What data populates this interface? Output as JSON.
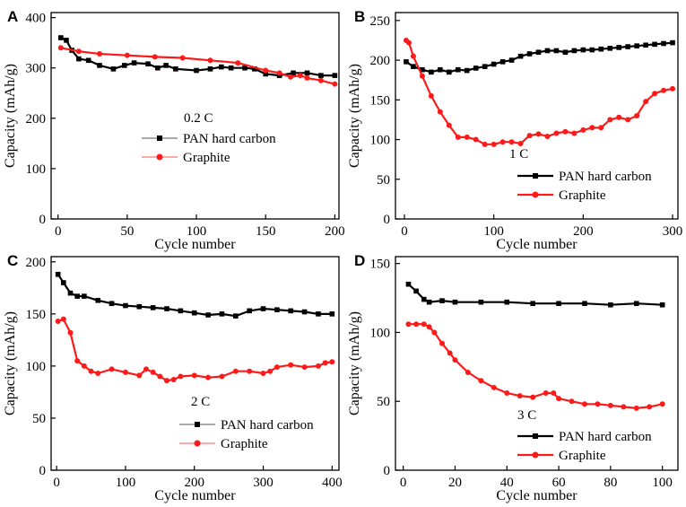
{
  "colors": {
    "pan": "#000000",
    "graphite": "#ff1a1a",
    "pan_faded": "#777777",
    "graphite_faded": "#ff7777"
  },
  "chart_data": [
    {
      "type": "line",
      "panel": "A",
      "rate_label": "0.2 C",
      "xlabel": "Cycle number",
      "ylabel": "Capacity (mAh/g)",
      "xlim": [
        -5,
        203
      ],
      "ylim": [
        0,
        410
      ],
      "xticks": [
        0,
        50,
        100,
        150,
        200
      ],
      "yticks": [
        0,
        100,
        200,
        300,
        400
      ],
      "legend": {
        "position": "center",
        "style": "faded"
      },
      "series": [
        {
          "name": "PAN hard carbon",
          "color_key": "pan",
          "points": [
            [
              2,
              360
            ],
            [
              6,
              355
            ],
            [
              10,
              335
            ],
            [
              15,
              318
            ],
            [
              22,
              315
            ],
            [
              30,
              305
            ],
            [
              40,
              298
            ],
            [
              48,
              305
            ],
            [
              55,
              310
            ],
            [
              65,
              308
            ],
            [
              72,
              300
            ],
            [
              78,
              305
            ],
            [
              85,
              298
            ],
            [
              100,
              295
            ],
            [
              110,
              298
            ],
            [
              118,
              302
            ],
            [
              125,
              300
            ],
            [
              135,
              300
            ],
            [
              142,
              298
            ],
            [
              150,
              288
            ],
            [
              160,
              285
            ],
            [
              170,
              290
            ],
            [
              180,
              290
            ],
            [
              190,
              285
            ],
            [
              200,
              285
            ]
          ]
        },
        {
          "name": "Graphite",
          "color_key": "graphite",
          "points": [
            [
              2,
              340
            ],
            [
              15,
              333
            ],
            [
              30,
              328
            ],
            [
              50,
              325
            ],
            [
              70,
              322
            ],
            [
              90,
              320
            ],
            [
              110,
              315
            ],
            [
              130,
              310
            ],
            [
              150,
              295
            ],
            [
              160,
              290
            ],
            [
              168,
              282
            ],
            [
              175,
              285
            ],
            [
              180,
              280
            ],
            [
              190,
              275
            ],
            [
              200,
              268
            ]
          ]
        }
      ]
    },
    {
      "type": "line",
      "panel": "B",
      "rate_label": "1 C",
      "xlabel": "Cycle number",
      "ylabel": "Capacity (mAh/g)",
      "xlim": [
        -10,
        306
      ],
      "ylim": [
        0,
        260
      ],
      "xticks": [
        0,
        100,
        200,
        300
      ],
      "yticks": [
        0,
        50,
        100,
        150,
        200,
        250
      ],
      "legend": {
        "position": "bottom-right",
        "style": "solid"
      },
      "series": [
        {
          "name": "PAN hard carbon",
          "color_key": "pan",
          "points": [
            [
              2,
              198
            ],
            [
              10,
              192
            ],
            [
              20,
              188
            ],
            [
              30,
              185
            ],
            [
              40,
              188
            ],
            [
              50,
              185
            ],
            [
              60,
              188
            ],
            [
              70,
              187
            ],
            [
              80,
              190
            ],
            [
              90,
              192
            ],
            [
              100,
              195
            ],
            [
              110,
              198
            ],
            [
              120,
              200
            ],
            [
              130,
              205
            ],
            [
              140,
              208
            ],
            [
              150,
              210
            ],
            [
              160,
              212
            ],
            [
              170,
              212
            ],
            [
              180,
              210
            ],
            [
              190,
              212
            ],
            [
              200,
              213
            ],
            [
              210,
              213
            ],
            [
              220,
              214
            ],
            [
              230,
              215
            ],
            [
              240,
              216
            ],
            [
              250,
              217
            ],
            [
              260,
              218
            ],
            [
              270,
              219
            ],
            [
              280,
              220
            ],
            [
              290,
              221
            ],
            [
              300,
              222
            ]
          ]
        },
        {
          "name": "Graphite",
          "color_key": "graphite",
          "points": [
            [
              2,
              225
            ],
            [
              5,
              222
            ],
            [
              10,
              205
            ],
            [
              20,
              180
            ],
            [
              30,
              155
            ],
            [
              40,
              135
            ],
            [
              50,
              118
            ],
            [
              60,
              103
            ],
            [
              70,
              103
            ],
            [
              80,
              100
            ],
            [
              90,
              94
            ],
            [
              100,
              94
            ],
            [
              110,
              97
            ],
            [
              120,
              97
            ],
            [
              130,
              95
            ],
            [
              140,
              105
            ],
            [
              150,
              107
            ],
            [
              160,
              104
            ],
            [
              170,
              108
            ],
            [
              180,
              110
            ],
            [
              190,
              108
            ],
            [
              200,
              112
            ],
            [
              210,
              115
            ],
            [
              220,
              115
            ],
            [
              230,
              125
            ],
            [
              240,
              128
            ],
            [
              250,
              125
            ],
            [
              260,
              130
            ],
            [
              270,
              148
            ],
            [
              280,
              158
            ],
            [
              290,
              162
            ],
            [
              300,
              164
            ]
          ]
        }
      ]
    },
    {
      "type": "line",
      "panel": "C",
      "rate_label": "2 C",
      "xlabel": "Cycle number",
      "ylabel": "Capacity (mAh/g)",
      "xlim": [
        -8,
        410
      ],
      "ylim": [
        0,
        205
      ],
      "xticks": [
        0,
        100,
        200,
        300,
        400
      ],
      "yticks": [
        0,
        50,
        100,
        150,
        200
      ],
      "legend": {
        "position": "bottom-right",
        "style": "faded"
      },
      "series": [
        {
          "name": "PAN hard carbon",
          "color_key": "pan",
          "points": [
            [
              2,
              188
            ],
            [
              10,
              180
            ],
            [
              20,
              170
            ],
            [
              30,
              167
            ],
            [
              40,
              167
            ],
            [
              60,
              163
            ],
            [
              80,
              160
            ],
            [
              100,
              158
            ],
            [
              120,
              157
            ],
            [
              140,
              156
            ],
            [
              160,
              155
            ],
            [
              180,
              153
            ],
            [
              200,
              151
            ],
            [
              220,
              149
            ],
            [
              240,
              150
            ],
            [
              260,
              148
            ],
            [
              280,
              153
            ],
            [
              300,
              155
            ],
            [
              320,
              154
            ],
            [
              340,
              153
            ],
            [
              360,
              152
            ],
            [
              380,
              150
            ],
            [
              400,
              150
            ]
          ]
        },
        {
          "name": "Graphite",
          "color_key": "graphite",
          "points": [
            [
              2,
              143
            ],
            [
              10,
              145
            ],
            [
              20,
              132
            ],
            [
              30,
              105
            ],
            [
              40,
              100
            ],
            [
              50,
              95
            ],
            [
              60,
              93
            ],
            [
              80,
              97
            ],
            [
              100,
              94
            ],
            [
              120,
              91
            ],
            [
              130,
              97
            ],
            [
              140,
              94
            ],
            [
              150,
              90
            ],
            [
              160,
              86
            ],
            [
              170,
              87
            ],
            [
              180,
              90
            ],
            [
              200,
              91
            ],
            [
              220,
              89
            ],
            [
              240,
              90
            ],
            [
              260,
              95
            ],
            [
              280,
              95
            ],
            [
              300,
              93
            ],
            [
              310,
              95
            ],
            [
              320,
              99
            ],
            [
              340,
              101
            ],
            [
              360,
              99
            ],
            [
              380,
              100
            ],
            [
              390,
              103
            ],
            [
              400,
              104
            ]
          ]
        }
      ]
    },
    {
      "type": "line",
      "panel": "D",
      "rate_label": "3 C",
      "xlabel": "Cycle number",
      "ylabel": "Capacity (mAh/g)",
      "xlim": [
        -3,
        106
      ],
      "ylim": [
        0,
        155
      ],
      "xticks": [
        0,
        20,
        40,
        60,
        80,
        100
      ],
      "yticks": [
        0,
        50,
        100,
        150
      ],
      "legend": {
        "position": "bottom-right",
        "style": "solid"
      },
      "series": [
        {
          "name": "PAN hard carbon",
          "color_key": "pan",
          "points": [
            [
              2,
              135
            ],
            [
              5,
              130
            ],
            [
              8,
              124
            ],
            [
              10,
              122
            ],
            [
              15,
              123
            ],
            [
              20,
              122
            ],
            [
              30,
              122
            ],
            [
              40,
              122
            ],
            [
              50,
              121
            ],
            [
              60,
              121
            ],
            [
              70,
              121
            ],
            [
              80,
              120
            ],
            [
              90,
              121
            ],
            [
              100,
              120
            ]
          ]
        },
        {
          "name": "Graphite",
          "color_key": "graphite",
          "points": [
            [
              2,
              106
            ],
            [
              5,
              106
            ],
            [
              8,
              106
            ],
            [
              10,
              104
            ],
            [
              12,
              100
            ],
            [
              15,
              92
            ],
            [
              18,
              85
            ],
            [
              20,
              80
            ],
            [
              25,
              71
            ],
            [
              30,
              65
            ],
            [
              35,
              60
            ],
            [
              40,
              56
            ],
            [
              45,
              54
            ],
            [
              50,
              53
            ],
            [
              55,
              56
            ],
            [
              58,
              56
            ],
            [
              60,
              52
            ],
            [
              65,
              50
            ],
            [
              70,
              48
            ],
            [
              75,
              48
            ],
            [
              80,
              47
            ],
            [
              85,
              46
            ],
            [
              90,
              45
            ],
            [
              95,
              46
            ],
            [
              100,
              48
            ]
          ]
        }
      ]
    }
  ]
}
